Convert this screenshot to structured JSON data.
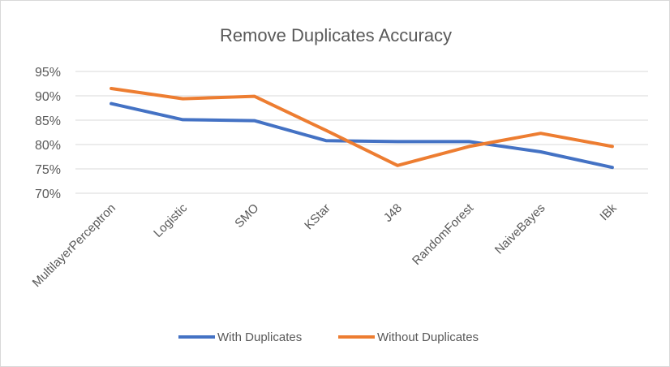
{
  "chart_data": {
    "type": "line",
    "title": "Remove Duplicates Accuracy",
    "categories": [
      "MultilayerPerceptron",
      "Logistic",
      "SMO",
      "KStar",
      "J48",
      "RandomForest",
      "NaiveBayes",
      "IBk"
    ],
    "series": [
      {
        "name": "With Duplicates",
        "color": "#4472c4",
        "values": [
          88.4,
          85.1,
          84.9,
          80.8,
          80.6,
          80.6,
          78.5,
          75.3
        ]
      },
      {
        "name": "Without Duplicates",
        "color": "#ed7d31",
        "values": [
          91.5,
          89.4,
          89.9,
          82.9,
          75.7,
          79.6,
          82.3,
          79.6
        ]
      }
    ],
    "yticks": [
      "70%",
      "75%",
      "80%",
      "85%",
      "90%",
      "95%"
    ],
    "ylim": [
      70,
      95
    ],
    "grid": true,
    "legend": "bottom"
  }
}
